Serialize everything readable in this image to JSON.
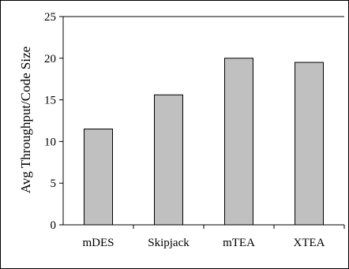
{
  "chart_data": {
    "type": "bar",
    "title": "",
    "xlabel": "",
    "ylabel": "Avg Throughput/Code Size",
    "categories": [
      "mDES",
      "Skipjack",
      "mTEA",
      "XTEA"
    ],
    "values": [
      11.5,
      15.6,
      20.0,
      19.5
    ],
    "ylim": [
      0,
      25
    ],
    "yticks": [
      0,
      5,
      10,
      15,
      20,
      25
    ],
    "ytick_labels": [
      "0",
      "5",
      "10",
      "15",
      "20",
      "25"
    ],
    "grid": false,
    "legend": "none",
    "bar_color": "#c0c0c0",
    "bar_edge_color": "#000000"
  }
}
